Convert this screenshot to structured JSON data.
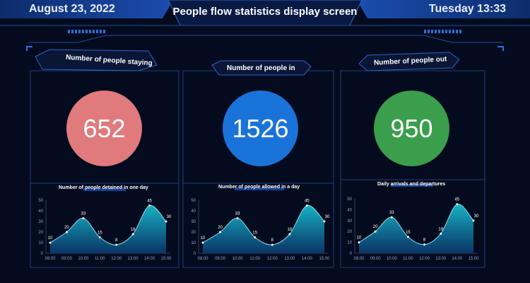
{
  "header": {
    "date": "August 23, 2022",
    "title": "People flow statistics display screen",
    "weekday_time": "Tuesday 13:33"
  },
  "colors": {
    "background": "#050b1e",
    "frame": "#1d4f9e",
    "staying": "#e07a7c",
    "in": "#1a73d9",
    "out": "#3a9e4d",
    "area": "#17b3c6"
  },
  "panels": [
    {
      "title": "Number of people staying",
      "value": "652",
      "chart_title": "Number of people detained in one day"
    },
    {
      "title": "Number of people in",
      "value": "1526",
      "chart_title": "Number of people allowed in a day"
    },
    {
      "title": "Number of people out",
      "value": "950",
      "chart_title": "Daily arrivals and departures"
    }
  ],
  "chart_data": [
    {
      "type": "area",
      "title": "Number of people detained in one day",
      "categories": [
        "08:00",
        "09:00",
        "10:00",
        "11:00",
        "12:00",
        "13:00",
        "14:00",
        "15:00"
      ],
      "values": [
        10,
        20,
        33,
        15,
        8,
        18,
        45,
        30
      ],
      "ylim": [
        0,
        50
      ],
      "yticks": [
        "0",
        "10",
        "20",
        "30",
        "40",
        "50"
      ]
    },
    {
      "type": "area",
      "title": "Number of people allowed in a day",
      "categories": [
        "08:00",
        "09:00",
        "10:00",
        "11:00",
        "12:00",
        "13:00",
        "14:00",
        "15:00"
      ],
      "values": [
        10,
        20,
        33,
        15,
        8,
        18,
        45,
        30
      ],
      "ylim": [
        0,
        50
      ],
      "yticks": [
        "0",
        "10",
        "20",
        "30",
        "40",
        "50"
      ]
    },
    {
      "type": "area",
      "title": "Daily arrivals and departures",
      "categories": [
        "08:00",
        "09:00",
        "10:00",
        "11:00",
        "12:00",
        "13:00",
        "14:00",
        "15:00"
      ],
      "values": [
        10,
        20,
        33,
        15,
        8,
        18,
        45,
        30
      ],
      "ylim": [
        0,
        50
      ],
      "yticks": [
        "0",
        "10",
        "20",
        "30",
        "40",
        "50"
      ]
    }
  ]
}
